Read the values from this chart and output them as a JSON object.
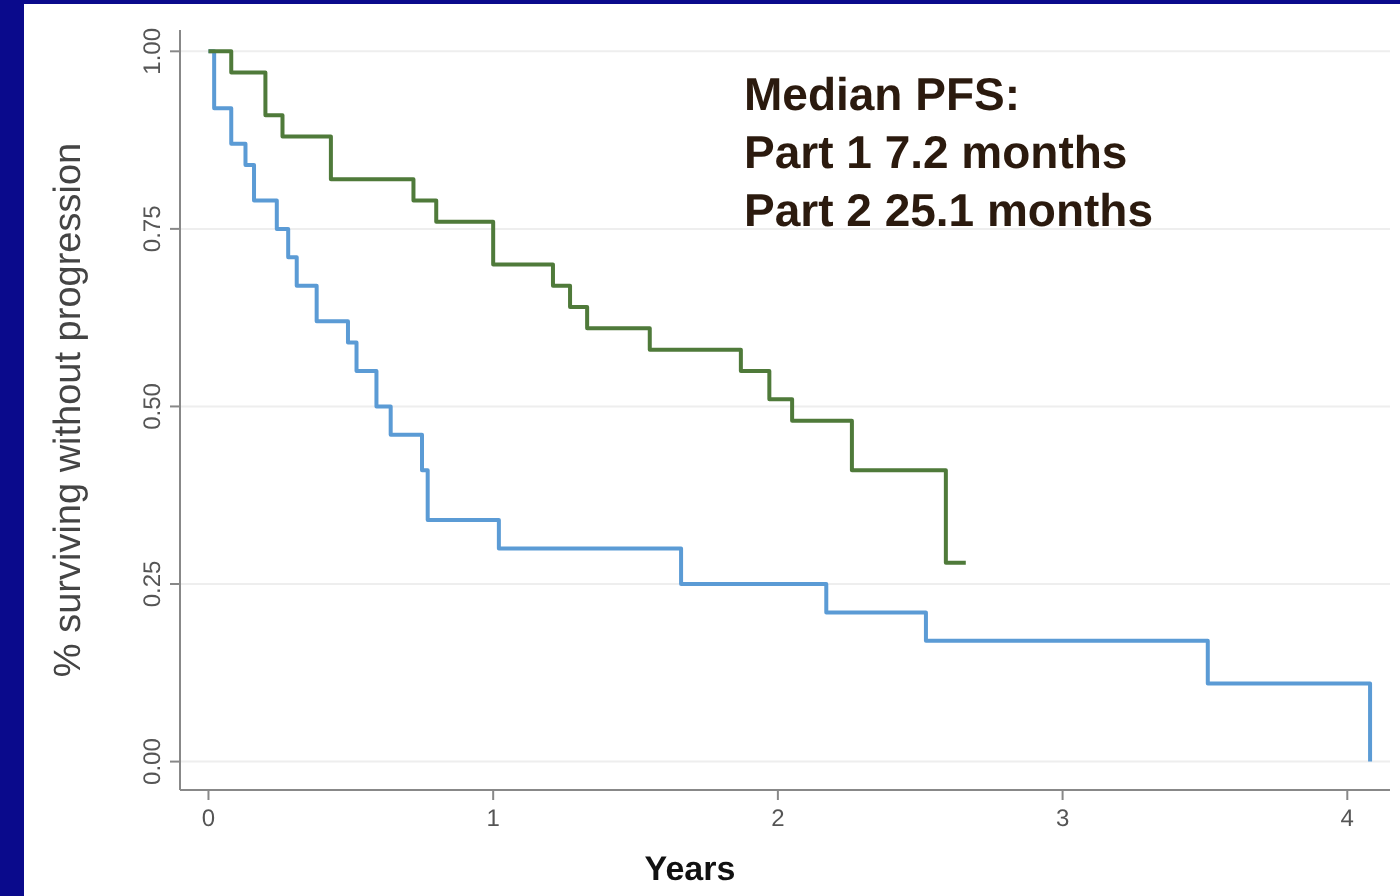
{
  "chart_data": {
    "type": "step",
    "xlabel": "Years",
    "ylabel": "% surviving without progression",
    "xlim": [
      -0.1,
      4.15
    ],
    "ylim": [
      -0.04,
      1.03
    ],
    "xticks": [
      0,
      1,
      2,
      3,
      4
    ],
    "yticks": [
      {
        "value": 0,
        "label": "0.00"
      },
      {
        "value": 0.25,
        "label": "0.25"
      },
      {
        "value": 0.5,
        "label": "0.50"
      },
      {
        "value": 0.75,
        "label": "0.75"
      },
      {
        "value": 1,
        "label": "1.00"
      }
    ],
    "grid": "y",
    "marker": "none",
    "line_style": "solid",
    "series": [
      {
        "color": "#5b9bd5",
        "x": [
          0,
          0.02,
          0.08,
          0.13,
          0.16,
          0.24,
          0.28,
          0.31,
          0.38,
          0.49,
          0.52,
          0.59,
          0.64,
          0.75,
          0.77,
          1.02,
          1.66,
          2.17,
          2.52,
          3.51,
          4.08
        ],
        "values": [
          1,
          0.92,
          0.87,
          0.84,
          0.79,
          0.75,
          0.71,
          0.67,
          0.62,
          0.59,
          0.55,
          0.5,
          0.46,
          0.41,
          0.34,
          0.3,
          0.25,
          0.21,
          0.17,
          0.11,
          0
        ]
      },
      {
        "color": "#4f7a3a",
        "x": [
          0,
          0.08,
          0.2,
          0.26,
          0.43,
          0.72,
          0.8,
          1.0,
          1.21,
          1.27,
          1.33,
          1.55,
          1.87,
          1.97,
          2.05,
          2.26,
          2.59,
          2.66
        ],
        "values": [
          1,
          0.97,
          0.91,
          0.88,
          0.82,
          0.79,
          0.76,
          0.7,
          0.67,
          0.64,
          0.61,
          0.58,
          0.55,
          0.51,
          0.48,
          0.41,
          0.28,
          0.28
        ]
      }
    ],
    "annotations": [
      "Median PFS:",
      "Part 1 7.2 months",
      "Part 2 25.1 months"
    ]
  }
}
